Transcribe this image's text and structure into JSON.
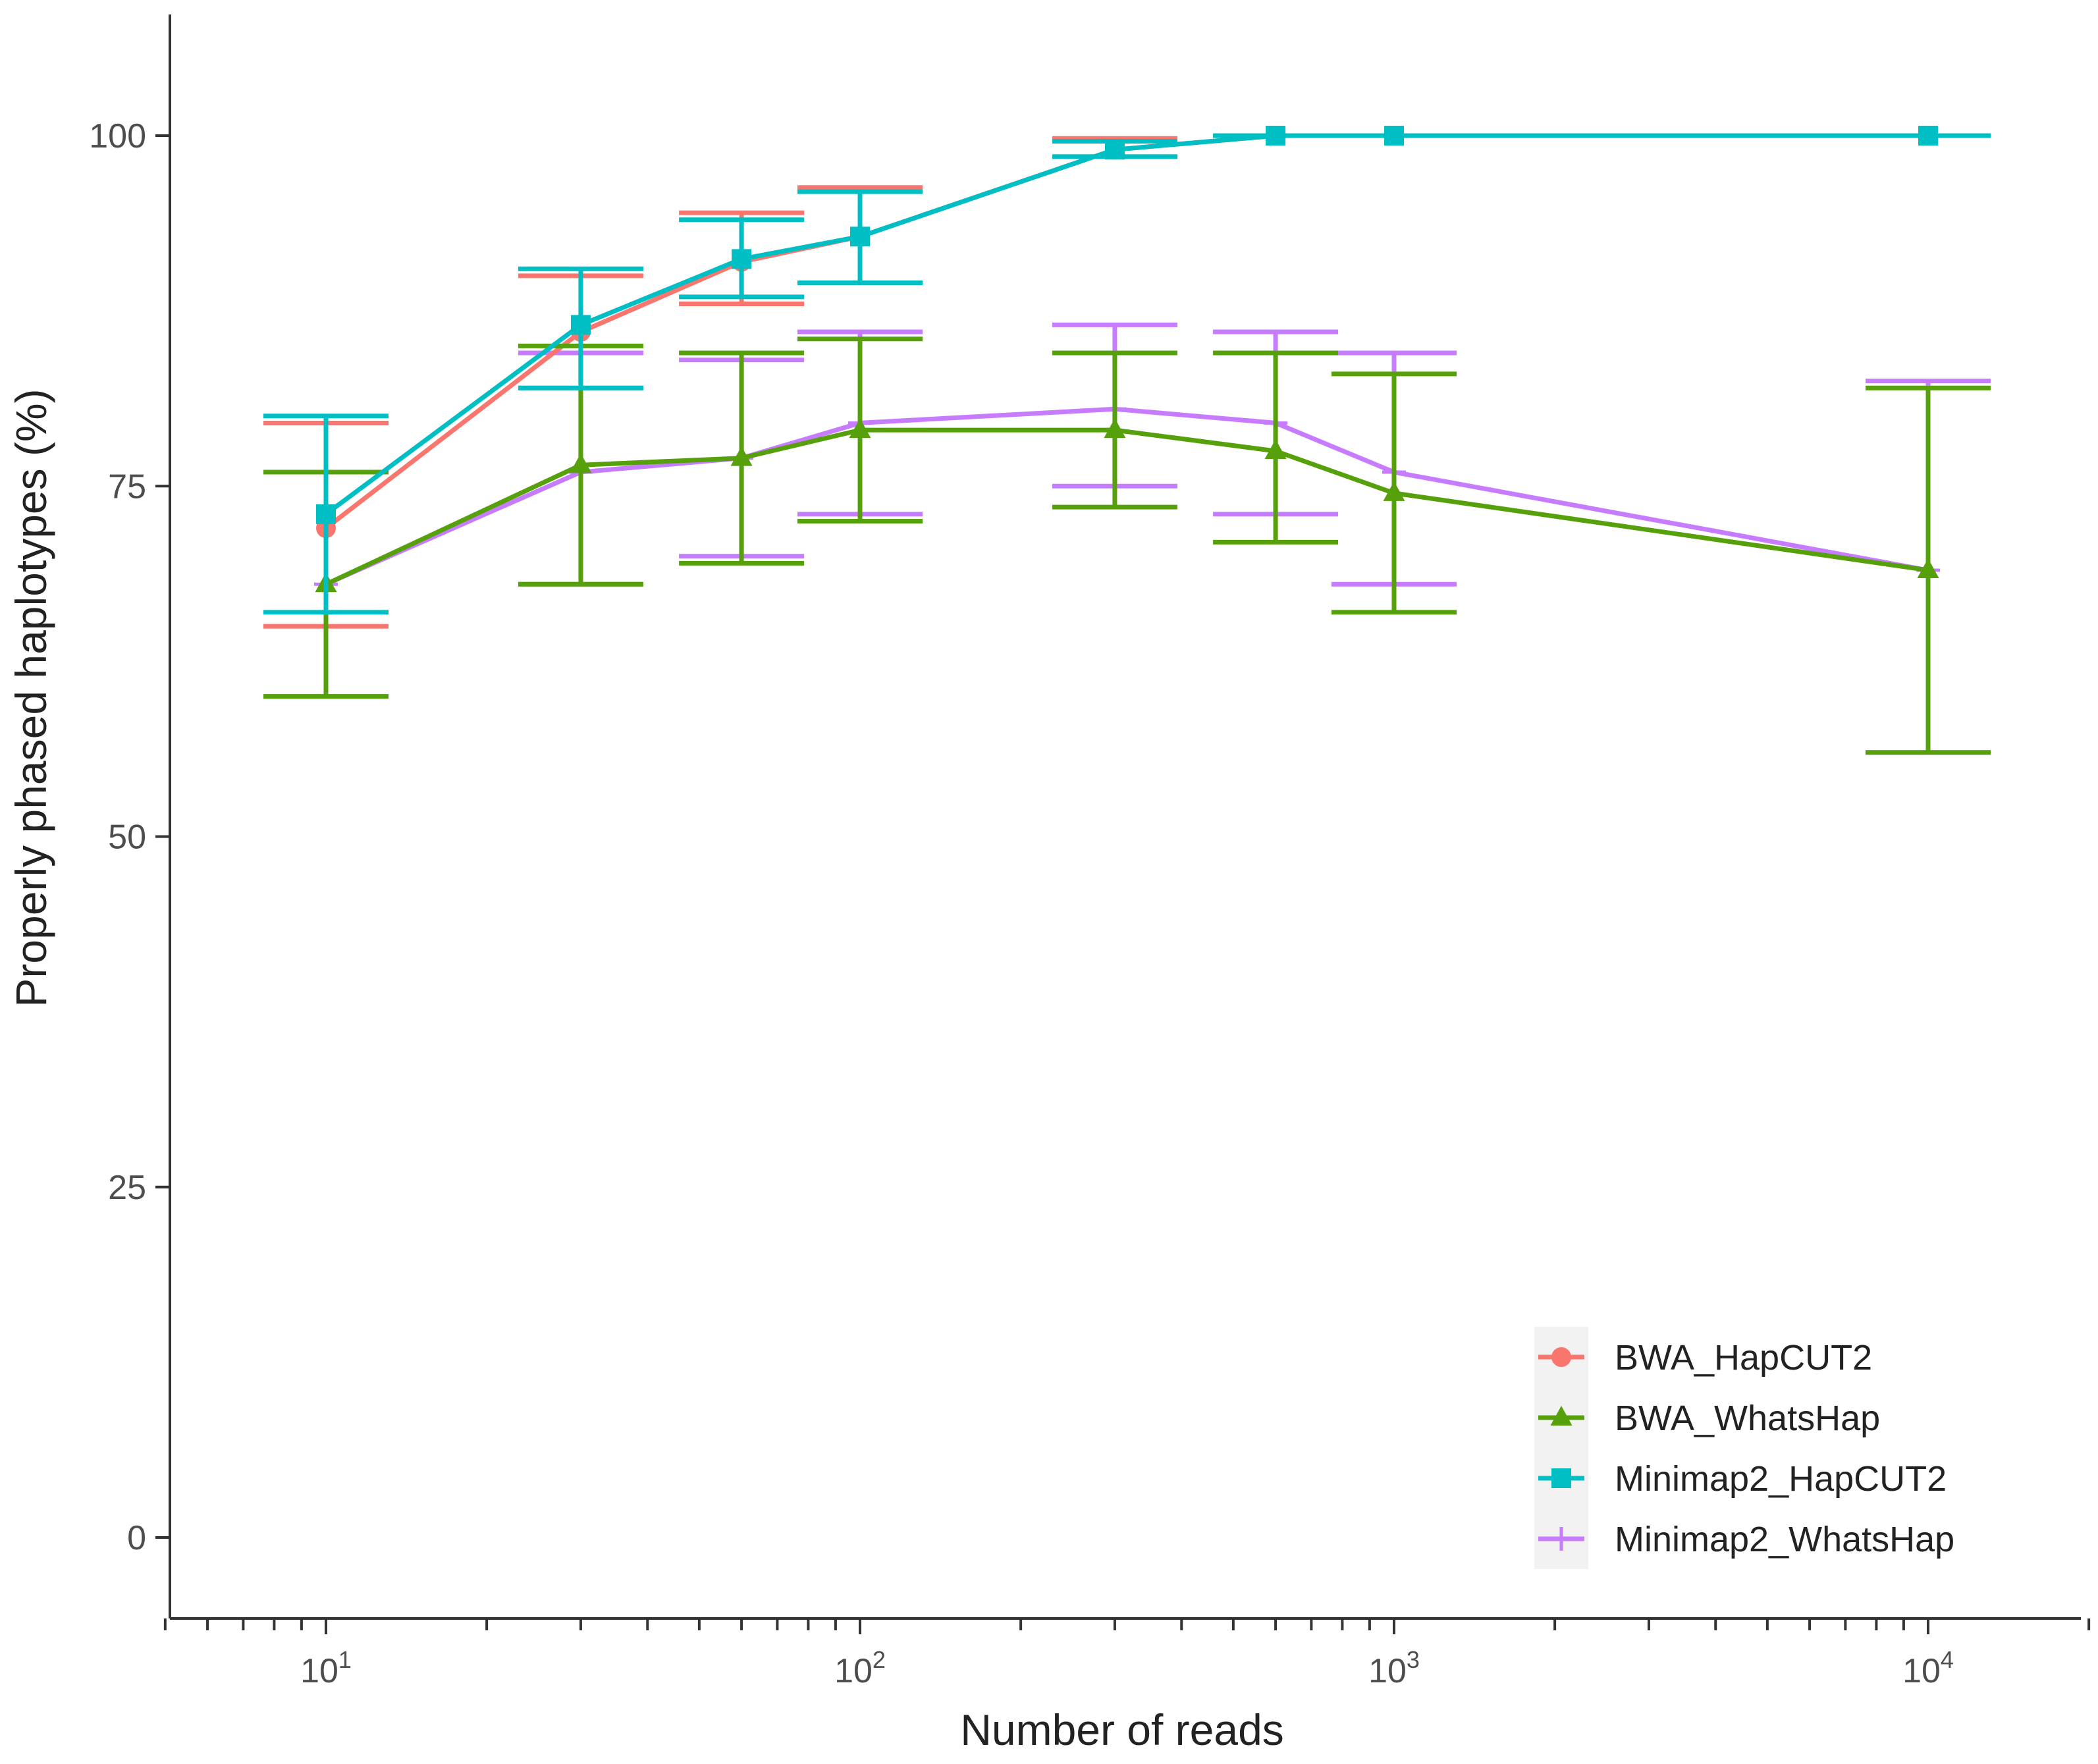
{
  "chart_data": {
    "type": "line",
    "title": "",
    "xlabel": "Number of reads",
    "ylabel": "Properly phased haplotypes (%)",
    "xscale": "log10",
    "xlim": [
      5,
      20000
    ],
    "ylim": [
      -6,
      109
    ],
    "x_ticks": [
      10,
      100,
      1000,
      10000
    ],
    "x_tick_labels": [
      {
        "base": "10",
        "exp": "1"
      },
      {
        "base": "10",
        "exp": "2"
      },
      {
        "base": "10",
        "exp": "3"
      },
      {
        "base": "10",
        "exp": "4"
      }
    ],
    "y_ticks": [
      0,
      25,
      50,
      75,
      100
    ],
    "y_tick_labels": [
      "0",
      "25",
      "50",
      "75",
      "100"
    ],
    "grid": false,
    "legend_position": "bottom-right",
    "series": [
      {
        "name": "BWA_HapCUT2",
        "color": "#F8766D",
        "marker": "circle",
        "points": [
          {
            "x": 10,
            "y": 72.0,
            "lo": 65.0,
            "hi": 79.5
          },
          {
            "x": 30,
            "y": 86.0,
            "lo": 82.0,
            "hi": 90.0
          },
          {
            "x": 60,
            "y": 91.0,
            "lo": 88.0,
            "hi": 94.5
          },
          {
            "x": 100,
            "y": 92.8,
            "lo": 89.5,
            "hi": 96.3
          },
          {
            "x": 300,
            "y": 99.0,
            "lo": 98.5,
            "hi": 99.8
          },
          {
            "x": 600,
            "y": 100.0,
            "lo": 100.0,
            "hi": 100.0
          },
          {
            "x": 1000,
            "y": 100.0,
            "lo": 100.0,
            "hi": 100.0
          },
          {
            "x": 10000,
            "y": 100.0,
            "lo": 100.0,
            "hi": 100.0
          }
        ]
      },
      {
        "name": "BWA_WhatsHap",
        "color": "#56A00B",
        "marker": "triangle",
        "points": [
          {
            "x": 10,
            "y": 68.0,
            "lo": 60.0,
            "hi": 76.0
          },
          {
            "x": 30,
            "y": 76.5,
            "lo": 68.0,
            "hi": 85.0
          },
          {
            "x": 60,
            "y": 77.0,
            "lo": 69.5,
            "hi": 84.5
          },
          {
            "x": 100,
            "y": 79.0,
            "lo": 72.5,
            "hi": 85.5
          },
          {
            "x": 300,
            "y": 79.0,
            "lo": 73.5,
            "hi": 84.5
          },
          {
            "x": 600,
            "y": 77.5,
            "lo": 71.0,
            "hi": 84.5
          },
          {
            "x": 1000,
            "y": 74.5,
            "lo": 66.0,
            "hi": 83.0
          },
          {
            "x": 10000,
            "y": 69.0,
            "lo": 56.0,
            "hi": 82.0
          }
        ]
      },
      {
        "name": "Minimap2_HapCUT2",
        "color": "#00BFC4",
        "marker": "square",
        "points": [
          {
            "x": 10,
            "y": 73.0,
            "lo": 66.0,
            "hi": 80.0
          },
          {
            "x": 30,
            "y": 86.5,
            "lo": 82.0,
            "hi": 90.5
          },
          {
            "x": 60,
            "y": 91.2,
            "lo": 88.5,
            "hi": 94.0
          },
          {
            "x": 100,
            "y": 92.8,
            "lo": 89.5,
            "hi": 96.0
          },
          {
            "x": 300,
            "y": 99.0,
            "lo": 98.5,
            "hi": 99.6
          },
          {
            "x": 600,
            "y": 100.0,
            "lo": 100.0,
            "hi": 100.0
          },
          {
            "x": 1000,
            "y": 100.0,
            "lo": 100.0,
            "hi": 100.0
          },
          {
            "x": 10000,
            "y": 100.0,
            "lo": 100.0,
            "hi": 100.0
          }
        ]
      },
      {
        "name": "Minimap2_WhatsHap",
        "color": "#C77CFF",
        "marker": "plus",
        "points": [
          {
            "x": 10,
            "y": 68.0,
            "lo": 60.0,
            "hi": 76.0
          },
          {
            "x": 30,
            "y": 76.0,
            "lo": 68.0,
            "hi": 84.5
          },
          {
            "x": 60,
            "y": 77.0,
            "lo": 70.0,
            "hi": 84.0
          },
          {
            "x": 100,
            "y": 79.5,
            "lo": 73.0,
            "hi": 86.0
          },
          {
            "x": 300,
            "y": 80.5,
            "lo": 75.0,
            "hi": 86.5
          },
          {
            "x": 600,
            "y": 79.5,
            "lo": 73.0,
            "hi": 86.0
          },
          {
            "x": 1000,
            "y": 76.0,
            "lo": 68.0,
            "hi": 84.5
          },
          {
            "x": 10000,
            "y": 69.0,
            "lo": 56.0,
            "hi": 82.5
          }
        ]
      }
    ]
  }
}
